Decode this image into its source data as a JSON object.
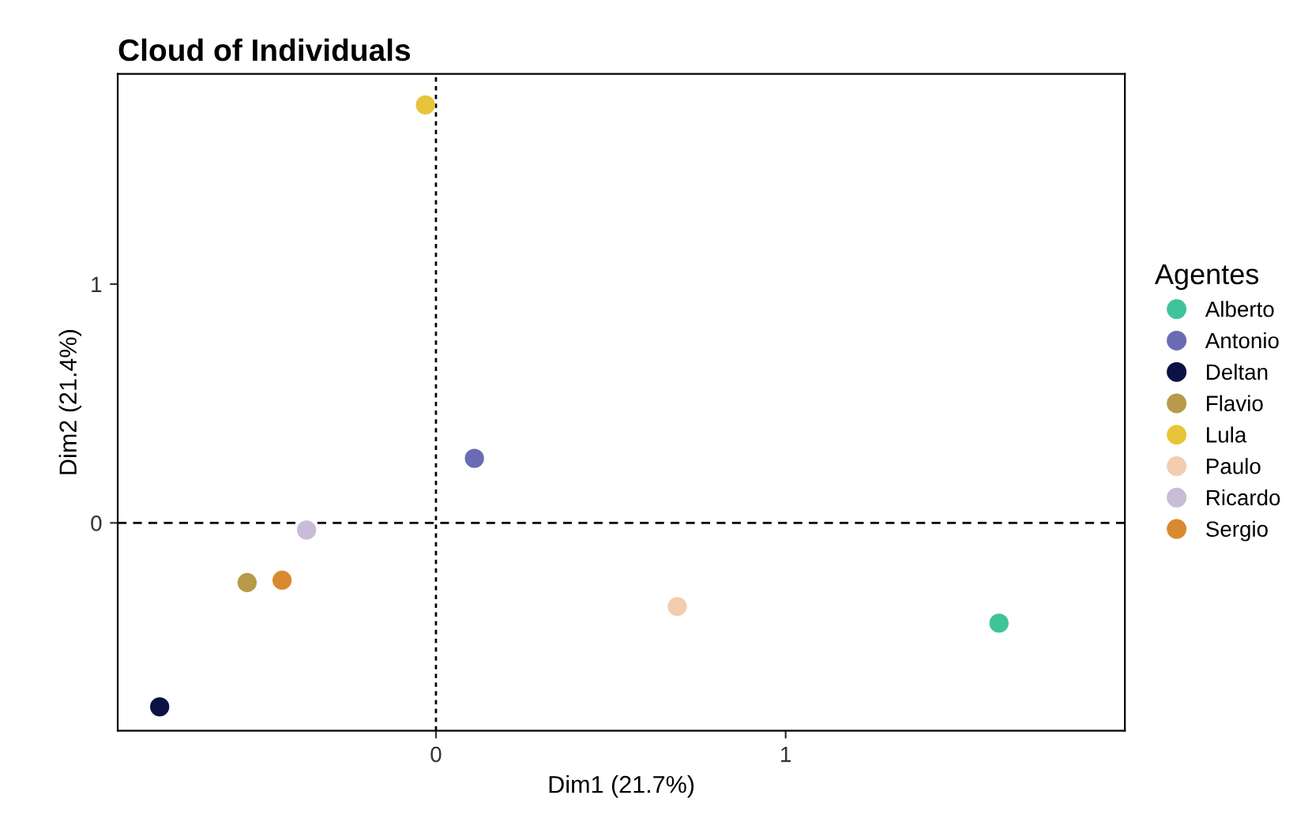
{
  "chart_data": {
    "type": "scatter",
    "title": "Cloud of Individuals",
    "xlabel": "Dim1 (21.7%)",
    "ylabel": "Dim2 (21.4%)",
    "legend_title": "Agentes",
    "legend": "right",
    "marker": "circle",
    "grid": false,
    "xlim": [
      -0.91,
      1.97
    ],
    "ylim": [
      -0.87,
      1.88
    ],
    "xticks": [
      0,
      1
    ],
    "yticks": [
      0,
      1
    ],
    "ref_lines": [
      {
        "axis": "x",
        "value": 0,
        "line_style": "dotted"
      },
      {
        "axis": "y",
        "value": 0,
        "line_style": "dashed"
      }
    ],
    "series": [
      {
        "name": "Alberto",
        "color": "#3fc49a",
        "x": [
          1.61
        ],
        "values": [
          -0.42
        ]
      },
      {
        "name": "Antonio",
        "color": "#6b6bb5",
        "x": [
          0.11
        ],
        "values": [
          0.27
        ]
      },
      {
        "name": "Deltan",
        "color": "#0d1245",
        "x": [
          -0.79
        ],
        "values": [
          -0.77
        ]
      },
      {
        "name": "Flavio",
        "color": "#b89a4a",
        "x": [
          -0.54
        ],
        "values": [
          -0.25
        ]
      },
      {
        "name": "Lula",
        "color": "#e8c43a",
        "x": [
          -0.03
        ],
        "values": [
          1.75
        ]
      },
      {
        "name": "Paulo",
        "color": "#f2cdb0",
        "x": [
          0.69
        ],
        "values": [
          -0.35
        ]
      },
      {
        "name": "Ricardo",
        "color": "#c9bcd6",
        "x": [
          -0.37
        ],
        "values": [
          -0.03
        ]
      },
      {
        "name": "Sergio",
        "color": "#d98a30",
        "x": [
          -0.44
        ],
        "values": [
          -0.24
        ]
      }
    ]
  }
}
